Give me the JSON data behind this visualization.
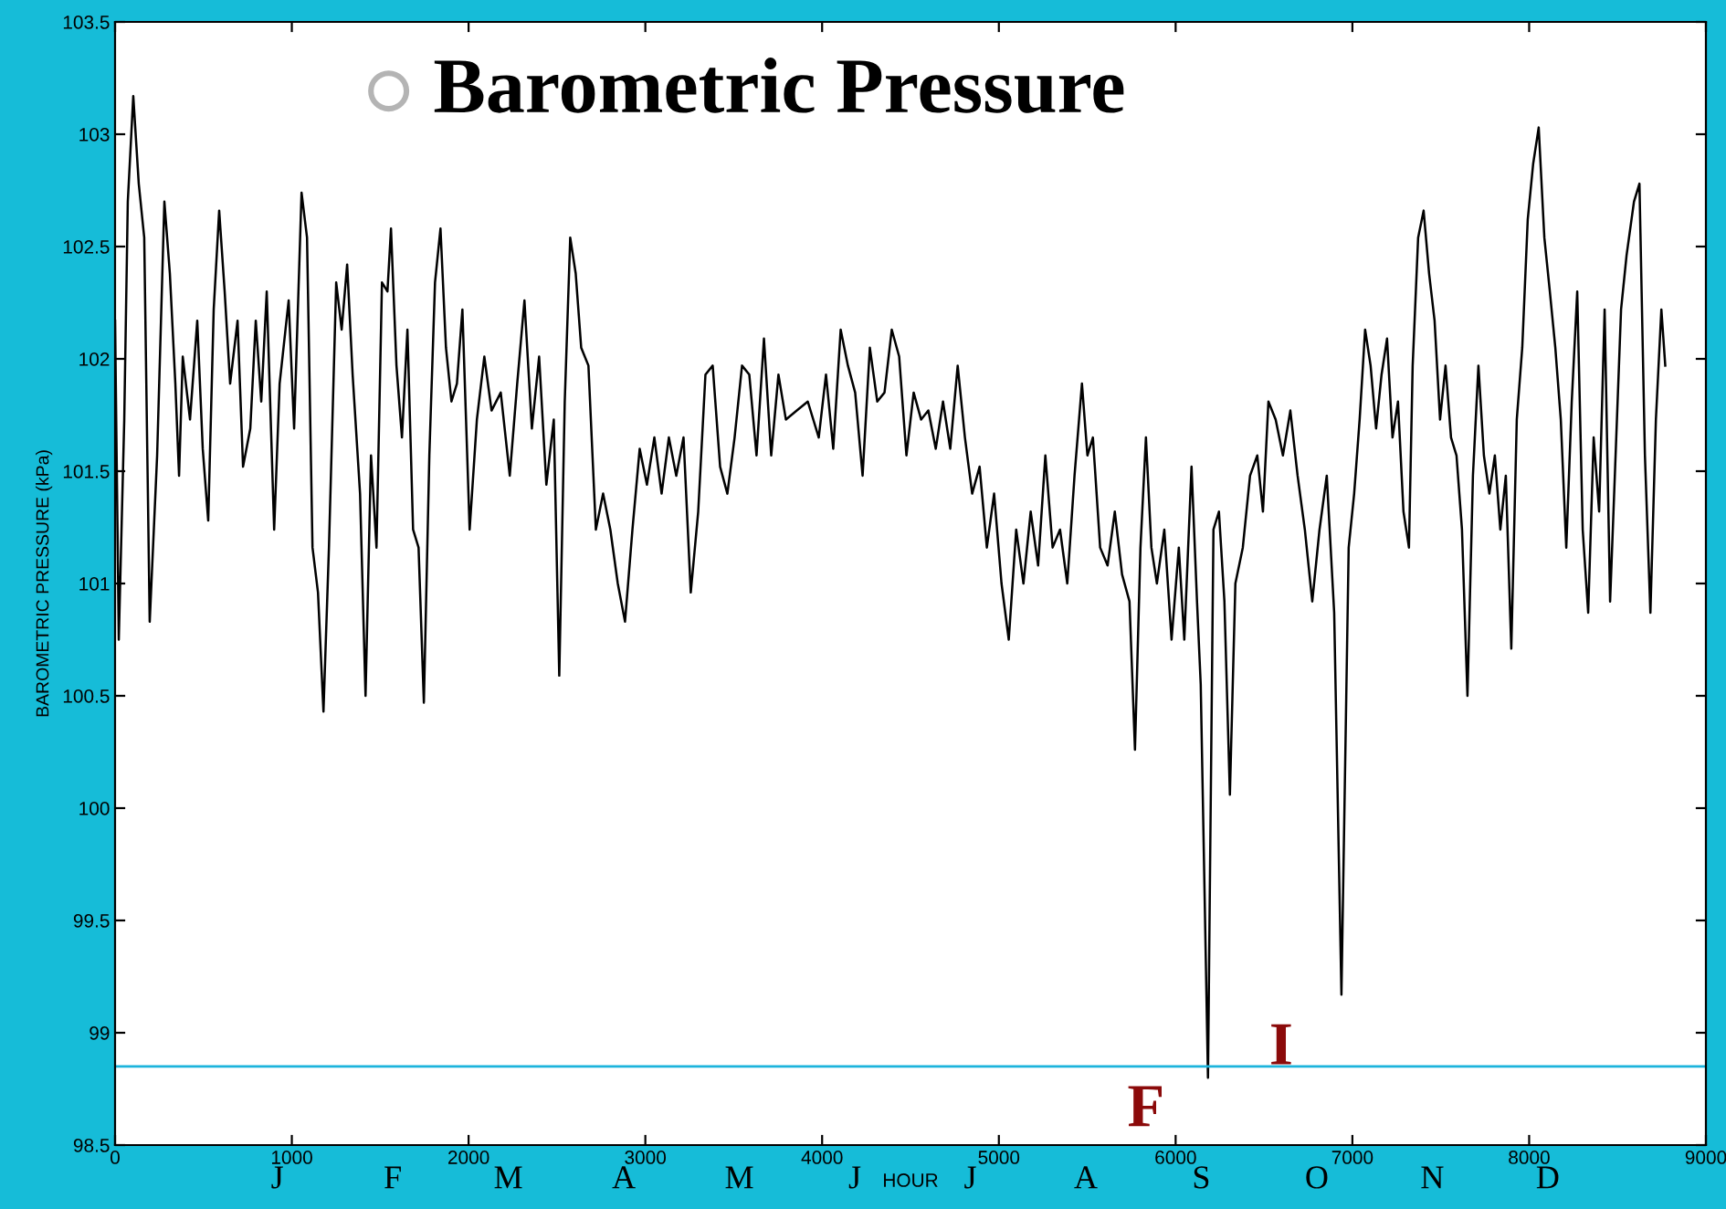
{
  "chart_data": {
    "type": "line",
    "title": "Barometric Pressure",
    "xlabel": "HOUR",
    "ylabel": "BAROMETRIC PRESSURE (kPa)",
    "xlim": [
      0,
      9000
    ],
    "xticks": [
      0,
      1000,
      2000,
      3000,
      4000,
      5000,
      6000,
      7000,
      8000,
      9000
    ],
    "ylim": [
      98.5,
      103.5
    ],
    "yticks": [
      98.5,
      99,
      99.5,
      100,
      100.5,
      101,
      101.5,
      102,
      102.5,
      103,
      103.5
    ],
    "grid": false,
    "legend": false,
    "marker": "none",
    "line_style": "solid",
    "x": [
      0,
      21,
      52,
      72,
      103,
      134,
      165,
      196,
      238,
      279,
      310,
      341,
      362,
      383,
      424,
      465,
      496,
      527,
      558,
      589,
      620,
      651,
      693,
      724,
      765,
      796,
      827,
      858,
      900,
      931,
      982,
      1013,
      1055,
      1086,
      1117,
      1148,
      1179,
      1210,
      1251,
      1282,
      1313,
      1344,
      1386,
      1417,
      1448,
      1479,
      1510,
      1541,
      1561,
      1592,
      1623,
      1654,
      1686,
      1717,
      1747,
      1778,
      1810,
      1841,
      1872,
      1903,
      1934,
      1965,
      2006,
      2047,
      2089,
      2130,
      2182,
      2233,
      2275,
      2316,
      2358,
      2399,
      2440,
      2482,
      2513,
      2544,
      2575,
      2606,
      2637,
      2678,
      2720,
      2761,
      2802,
      2844,
      2885,
      2927,
      2968,
      3009,
      3051,
      3092,
      3133,
      3175,
      3216,
      3257,
      3299,
      3340,
      3381,
      3423,
      3464,
      3505,
      3547,
      3588,
      3629,
      3671,
      3712,
      3753,
      3795,
      3857,
      3919,
      3981,
      4022,
      4063,
      4105,
      4146,
      4187,
      4229,
      4270,
      4312,
      4353,
      4394,
      4436,
      4477,
      4518,
      4560,
      4601,
      4643,
      4684,
      4725,
      4767,
      4808,
      4849,
      4891,
      4932,
      4973,
      5015,
      5056,
      5098,
      5139,
      5180,
      5222,
      5263,
      5304,
      5346,
      5387,
      5428,
      5470,
      5501,
      5532,
      5573,
      5615,
      5656,
      5697,
      5739,
      5770,
      5801,
      5832,
      5863,
      5894,
      5936,
      5977,
      6018,
      6049,
      6090,
      6121,
      6142,
      6183,
      6214,
      6245,
      6276,
      6307,
      6338,
      6380,
      6421,
      6462,
      6494,
      6525,
      6566,
      6607,
      6649,
      6690,
      6731,
      6773,
      6814,
      6855,
      6897,
      6938,
      6979,
      7010,
      7041,
      7072,
      7103,
      7134,
      7165,
      7196,
      7227,
      7258,
      7289,
      7320,
      7341,
      7372,
      7403,
      7434,
      7465,
      7496,
      7527,
      7558,
      7589,
      7620,
      7651,
      7682,
      7713,
      7744,
      7775,
      7806,
      7837,
      7868,
      7899,
      7930,
      7961,
      7992,
      8023,
      8054,
      8086,
      8117,
      8148,
      8179,
      8210,
      8241,
      8272,
      8303,
      8334,
      8365,
      8396,
      8427,
      8458,
      8489,
      8520,
      8551,
      8593,
      8624,
      8655,
      8686,
      8717,
      8748,
      8770
    ],
    "series": [
      {
        "color": "#000000",
        "values": [
          102.17,
          100.75,
          101.73,
          102.7,
          103.17,
          102.78,
          102.54,
          100.83,
          101.57,
          102.7,
          102.38,
          101.89,
          101.48,
          102.01,
          101.73,
          102.17,
          101.6,
          101.28,
          102.22,
          102.66,
          102.3,
          101.89,
          102.17,
          101.52,
          101.69,
          102.17,
          101.81,
          102.3,
          101.24,
          101.89,
          102.26,
          101.69,
          102.74,
          102.54,
          101.16,
          100.96,
          100.43,
          101.16,
          102.34,
          102.13,
          102.42,
          101.93,
          101.4,
          100.5,
          101.57,
          101.16,
          102.34,
          102.3,
          102.58,
          101.97,
          101.65,
          102.13,
          101.24,
          101.16,
          100.47,
          101.57,
          102.34,
          102.58,
          102.05,
          101.81,
          101.89,
          102.22,
          101.24,
          101.73,
          102.01,
          101.77,
          101.85,
          101.48,
          101.89,
          102.26,
          101.69,
          102.01,
          101.44,
          101.73,
          100.59,
          101.81,
          102.54,
          102.38,
          102.05,
          101.97,
          101.24,
          101.4,
          101.24,
          101.0,
          100.83,
          101.24,
          101.6,
          101.44,
          101.65,
          101.4,
          101.65,
          101.48,
          101.65,
          100.96,
          101.32,
          101.93,
          101.97,
          101.52,
          101.4,
          101.65,
          101.97,
          101.93,
          101.57,
          102.09,
          101.57,
          101.93,
          101.73,
          101.77,
          101.81,
          101.65,
          101.93,
          101.6,
          102.13,
          101.97,
          101.85,
          101.48,
          102.05,
          101.81,
          101.85,
          102.13,
          102.01,
          101.57,
          101.85,
          101.73,
          101.77,
          101.6,
          101.81,
          101.6,
          101.97,
          101.65,
          101.4,
          101.52,
          101.16,
          101.4,
          101.0,
          100.75,
          101.24,
          101.0,
          101.32,
          101.08,
          101.57,
          101.16,
          101.24,
          101.0,
          101.48,
          101.89,
          101.57,
          101.65,
          101.16,
          101.08,
          101.32,
          101.04,
          100.92,
          100.26,
          101.16,
          101.65,
          101.16,
          101.0,
          101.24,
          100.75,
          101.16,
          100.75,
          101.52,
          100.92,
          100.55,
          98.8,
          101.24,
          101.32,
          100.92,
          100.06,
          101.0,
          101.16,
          101.48,
          101.57,
          101.32,
          101.81,
          101.73,
          101.57,
          101.77,
          101.48,
          101.24,
          100.92,
          101.24,
          101.48,
          100.87,
          99.17,
          101.16,
          101.4,
          101.73,
          102.13,
          101.97,
          101.69,
          101.93,
          102.09,
          101.65,
          101.81,
          101.32,
          101.16,
          101.97,
          102.54,
          102.66,
          102.38,
          102.17,
          101.73,
          101.97,
          101.65,
          101.57,
          101.24,
          100.5,
          101.48,
          101.97,
          101.57,
          101.4,
          101.57,
          101.24,
          101.48,
          100.71,
          101.73,
          102.05,
          102.62,
          102.87,
          103.03,
          102.54,
          102.3,
          102.05,
          101.73,
          101.16,
          101.81,
          102.3,
          101.24,
          100.87,
          101.65,
          101.32,
          102.22,
          100.92,
          101.57,
          102.22,
          102.46,
          102.7,
          102.78,
          101.57,
          100.87,
          101.73,
          102.22,
          101.97
        ]
      }
    ],
    "ref_lines": [
      {
        "axis": "y",
        "value": 98.85,
        "color": "#1cb4dc"
      }
    ],
    "annotations": [
      "F",
      "I",
      "J",
      "F",
      "M",
      "A",
      "M",
      "J",
      "J",
      "A",
      "S",
      "O",
      "N",
      "D"
    ]
  }
}
